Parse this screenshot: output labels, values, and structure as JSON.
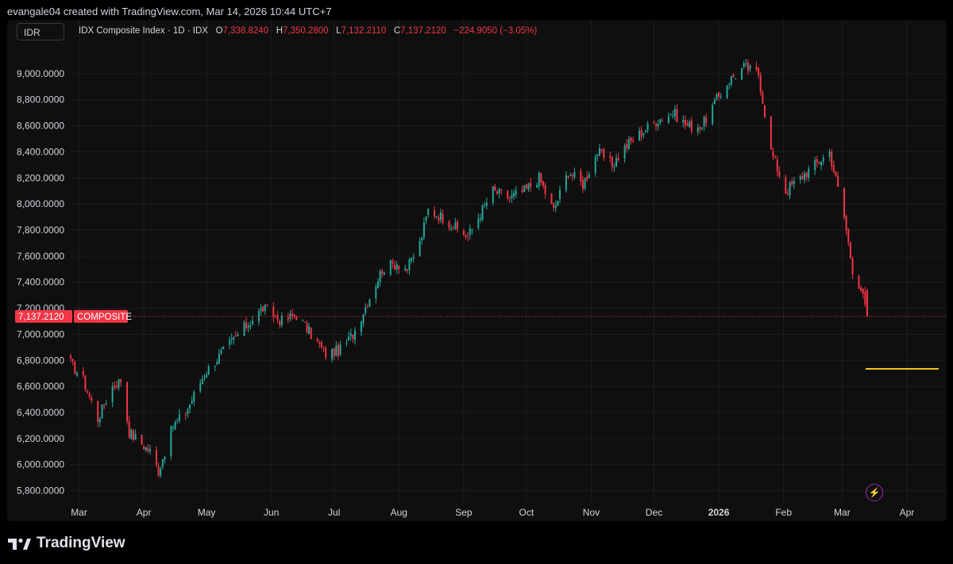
{
  "header": {
    "credit": "evangale04 created with TradingView.com, Mar 14, 2026 10:44 UTC+7"
  },
  "toolbar": {
    "currency": "IDR"
  },
  "legend": {
    "symbol": "IDX Composite Index · 1D · IDX",
    "o_label": "O",
    "o_value": "7,338.8240",
    "h_label": "H",
    "h_value": "7,350.2800",
    "l_label": "L",
    "l_value": "7,132.2110",
    "c_label": "C",
    "c_value": "7,137.2120",
    "change": "−224.9050 (−3.05%)"
  },
  "price_badge": {
    "value": "7,137.2120",
    "label": "COMPOSITE"
  },
  "footer": {
    "brand": "TradingView"
  },
  "colors": {
    "up": "#26a69a",
    "down": "#f23645",
    "grid": "#1e1e1e",
    "text": "#d1d4dc",
    "horizontal_line": "#f0c419"
  },
  "chart_data": {
    "type": "candlestick",
    "title": "IDX Composite Index · 1D · IDX",
    "ylim": [
      5700,
      9200
    ],
    "y_ticks": [
      "9,000.0000",
      "8,800.0000",
      "8,600.0000",
      "8,400.0000",
      "8,200.0000",
      "8,000.0000",
      "7,800.0000",
      "7,600.0000",
      "7,400.0000",
      "7,200.0000",
      "7,000.0000",
      "6,800.0000",
      "6,600.0000",
      "6,400.0000",
      "6,200.0000",
      "6,000.0000",
      "5,800.0000"
    ],
    "x_ticks": [
      "Mar",
      "Apr",
      "May",
      "Jun",
      "Jul",
      "Aug",
      "Sep",
      "Oct",
      "Nov",
      "Dec",
      "2026",
      "Feb",
      "Mar",
      "Apr"
    ],
    "x_range": [
      "2025-02-25",
      "2026-04-20"
    ],
    "last_price": 7137.212,
    "horizontal_line": {
      "value": 6735,
      "from": "2026-03-13",
      "to": "2026-04-20"
    },
    "close_path": [
      [
        "2025-02-25",
        6780
      ],
      [
        "2025-03-03",
        6650
      ],
      [
        "2025-03-10",
        6350
      ],
      [
        "2025-03-17",
        6600
      ],
      [
        "2025-03-21",
        6650
      ],
      [
        "2025-03-25",
        6250
      ],
      [
        "2025-04-04",
        6100
      ],
      [
        "2025-04-08",
        5950
      ],
      [
        "2025-04-15",
        6300
      ],
      [
        "2025-04-21",
        6400
      ],
      [
        "2025-04-30",
        6700
      ],
      [
        "2025-05-08",
        6850
      ],
      [
        "2025-05-19",
        7050
      ],
      [
        "2025-05-28",
        7200
      ],
      [
        "2025-06-06",
        7100
      ],
      [
        "2025-06-13",
        7150
      ],
      [
        "2025-06-20",
        7000
      ],
      [
        "2025-06-27",
        6850
      ],
      [
        "2025-07-04",
        6880
      ],
      [
        "2025-07-10",
        7000
      ],
      [
        "2025-07-17",
        7250
      ],
      [
        "2025-07-24",
        7500
      ],
      [
        "2025-07-31",
        7550
      ],
      [
        "2025-08-05",
        7500
      ],
      [
        "2025-08-11",
        7700
      ],
      [
        "2025-08-15",
        7950
      ],
      [
        "2025-08-22",
        7900
      ],
      [
        "2025-08-29",
        7800
      ],
      [
        "2025-09-03",
        7750
      ],
      [
        "2025-09-08",
        7900
      ],
      [
        "2025-09-15",
        8100
      ],
      [
        "2025-09-23",
        8050
      ],
      [
        "2025-09-30",
        8100
      ],
      [
        "2025-10-07",
        8200
      ],
      [
        "2025-10-14",
        7950
      ],
      [
        "2025-10-21",
        8250
      ],
      [
        "2025-10-28",
        8150
      ],
      [
        "2025-11-04",
        8400
      ],
      [
        "2025-11-11",
        8300
      ],
      [
        "2025-11-18",
        8450
      ],
      [
        "2025-11-25",
        8550
      ],
      [
        "2025-12-03",
        8650
      ],
      [
        "2025-12-10",
        8700
      ],
      [
        "2025-12-17",
        8600
      ],
      [
        "2025-12-24",
        8600
      ],
      [
        "2025-12-31",
        8800
      ],
      [
        "2026-01-06",
        8950
      ],
      [
        "2026-01-13",
        9050
      ],
      [
        "2026-01-20",
        9000
      ],
      [
        "2026-01-26",
        8400
      ],
      [
        "2026-02-02",
        8100
      ],
      [
        "2026-02-09",
        8200
      ],
      [
        "2026-02-16",
        8300
      ],
      [
        "2026-02-23",
        8400
      ],
      [
        "2026-03-02",
        7900
      ],
      [
        "2026-03-06",
        7500
      ],
      [
        "2026-03-10",
        7350
      ],
      [
        "2026-03-13",
        7137.212
      ]
    ]
  }
}
